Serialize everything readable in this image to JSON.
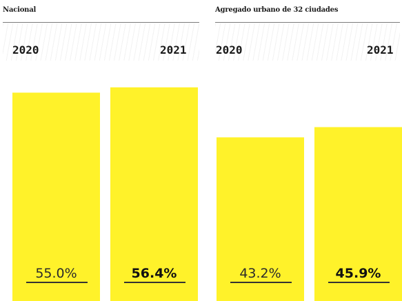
{
  "chart_data": [
    {
      "type": "bar",
      "title": "Nacional",
      "categories": [
        "2020",
        "2021"
      ],
      "values": [
        55.0,
        56.4
      ],
      "data_labels": [
        "55.0%",
        "56.4%"
      ],
      "unit": "%",
      "color": "#fff22a"
    },
    {
      "type": "bar",
      "title": "Agregado urbano de 32 ciudades",
      "categories": [
        "2020",
        "2021"
      ],
      "values": [
        43.2,
        45.9
      ],
      "data_labels": [
        "43.2%",
        "45.9%"
      ],
      "unit": "%",
      "color": "#fff22a"
    }
  ]
}
